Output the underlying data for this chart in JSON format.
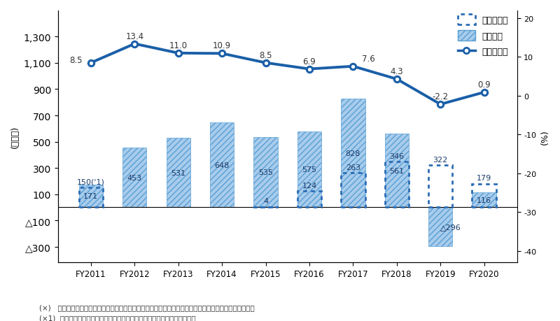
{
  "categories": [
    "FY2011",
    "FY2012",
    "FY2013",
    "FY2014",
    "FY2015",
    "FY2016",
    "FY2017",
    "FY2018",
    "FY2019",
    "FY2020"
  ],
  "operating_profit": [
    171,
    453,
    531,
    648,
    535,
    575,
    828,
    561,
    -296,
    116
  ],
  "rd_expense": [
    150,
    0,
    0,
    0,
    4,
    124,
    263,
    346,
    322,
    179
  ],
  "operating_margin": [
    8.5,
    13.4,
    11.0,
    10.9,
    8.5,
    6.9,
    7.6,
    4.3,
    -2.2,
    0.9
  ],
  "rd_labels": [
    "150('1)",
    "",
    "",
    "",
    "4",
    "124",
    "263",
    "346",
    "322",
    "179"
  ],
  "profit_labels": [
    "171",
    "453",
    "531",
    "648",
    "535",
    "575",
    "828",
    "561",
    "△296",
    "116"
  ],
  "margin_labels": [
    "8.5",
    "13.4",
    "11.0",
    "10.9",
    "8.5",
    "6.9",
    "7.6",
    "4.3",
    "-2.2",
    "0.9"
  ],
  "bar_color": "#a8ccec",
  "bar_edgecolor": "#5a9fd4",
  "bar_hatch": "////",
  "rd_border_color": "#2c6db5",
  "line_color": "#1a5fa8",
  "background_color": "#ffffff",
  "left_ylabel": "(百万円)",
  "right_ylabel": "(%)",
  "left_ylim": [
    -420,
    1500
  ],
  "right_ylim": [
    -43,
    22
  ],
  "left_yticks": [
    -300,
    -100,
    100,
    300,
    500,
    700,
    900,
    1100,
    1300
  ],
  "left_ytick_labels": [
    "△300",
    "△100",
    "100",
    "300",
    "500",
    "700",
    "900",
    "1,100",
    "1,300"
  ],
  "right_yticks": [
    -40,
    -30,
    -20,
    -10,
    0,
    10,
    20
  ],
  "right_ytick_labels": [
    "-40",
    "-30",
    "-20",
    "-10",
    "0",
    "10",
    "20"
  ],
  "note1": "(×)   研究開発費は収益と支出を純額で記載しているため、損益計算書上の販管費率と一致いたしません。",
  "note2": "(×1)  デジタルエンターテインメント事業に係わる研究開発費であります。",
  "legend_labels": [
    "研究開発費",
    "営業利益",
    "営業利益率"
  ]
}
